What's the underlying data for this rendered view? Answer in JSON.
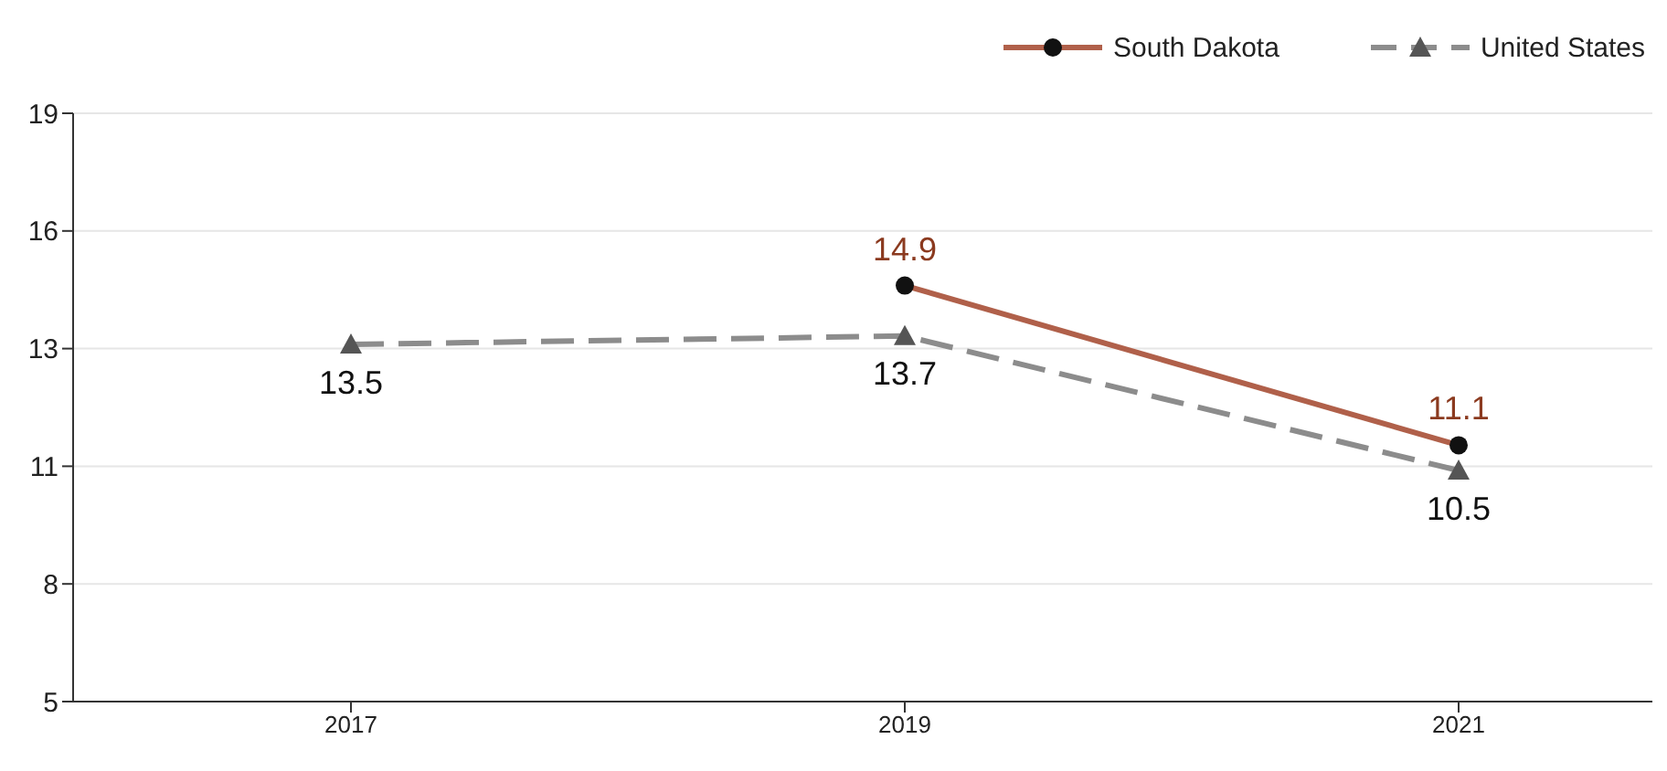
{
  "chart_data": {
    "type": "line",
    "categories": [
      "2017",
      "2019",
      "2021"
    ],
    "series": [
      {
        "name": "South Dakota",
        "color": "#b0604a",
        "values": [
          null,
          14.9,
          11.1
        ],
        "marker": "circle",
        "line_style": "solid"
      },
      {
        "name": "United States",
        "color": "#8c8c8c",
        "values": [
          13.5,
          13.7,
          10.5
        ],
        "marker": "triangle",
        "line_style": "dashed"
      }
    ],
    "ylim": [
      5,
      19
    ],
    "yticks": [
      5,
      {
        "value": 7.8,
        "label": "8"
      },
      {
        "value": 10.6,
        "label": "11"
      },
      {
        "value": 13.4,
        "label": "13"
      },
      {
        "value": 16.2,
        "label": "16"
      },
      19
    ],
    "grid": "y",
    "legend": "top right",
    "data_labels": true
  }
}
